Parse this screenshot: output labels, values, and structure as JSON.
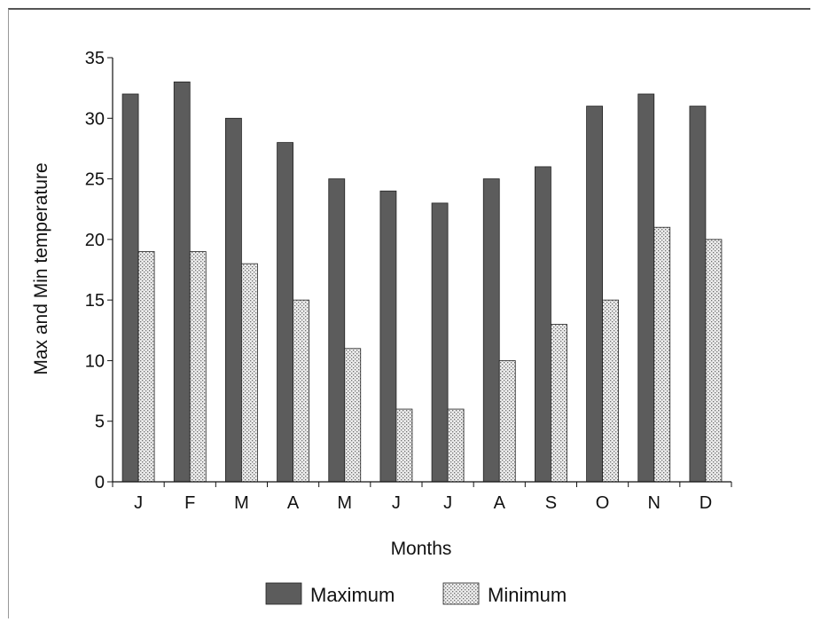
{
  "chart_data": {
    "type": "bar",
    "title": "",
    "xlabel": "Months",
    "ylabel": "Max and Min temperature",
    "categories": [
      "J",
      "F",
      "M",
      "A",
      "M",
      "J",
      "J",
      "A",
      "S",
      "O",
      "N",
      "D"
    ],
    "series": [
      {
        "name": "Maximum",
        "values": [
          32,
          33,
          30,
          28,
          25,
          24,
          23,
          25,
          26,
          31,
          32,
          31
        ],
        "color": "#5a5a5a"
      },
      {
        "name": "Minimum",
        "values": [
          19,
          19,
          18,
          15,
          11,
          6,
          6,
          10,
          13,
          15,
          21,
          20
        ],
        "color": "#d9d9d9"
      }
    ],
    "ylim": [
      0,
      35
    ],
    "yticks": [
      0,
      5,
      10,
      15,
      20,
      25,
      30,
      35
    ],
    "grid": false,
    "legend_position": "bottom"
  }
}
